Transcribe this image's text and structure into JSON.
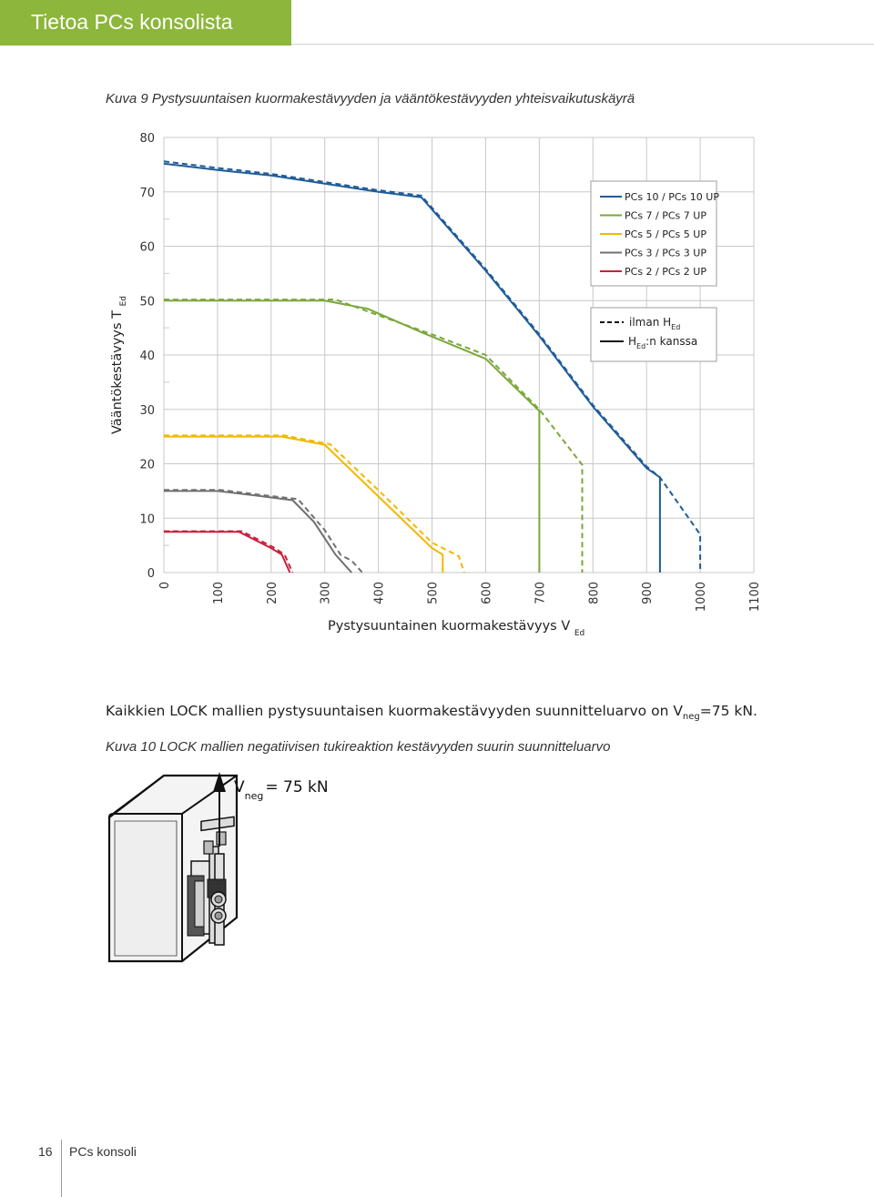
{
  "header": {
    "title": "Tietoa PCs konsolista",
    "accent_color": "#8cb63c"
  },
  "figure9": {
    "caption": "Kuva 9 Pystysuuntaisen kuormakestävyyden ja vääntökestävyyden yhteisvaikutuskäyrä"
  },
  "chart_data": {
    "type": "line",
    "xlabel": "Pystysuuntainen kuormakestävyys V",
    "xlabel_sub": "Ed",
    "ylabel": "Vääntökestävyys T",
    "ylabel_sub": "Ed",
    "xlim": [
      0,
      1100
    ],
    "ylim": [
      0,
      80
    ],
    "x_ticks": [
      "0",
      "100",
      "200",
      "300",
      "400",
      "500",
      "600",
      "700",
      "800",
      "900",
      "1000",
      "1100"
    ],
    "y_ticks": [
      "0",
      "10",
      "20",
      "30",
      "40",
      "50",
      "60",
      "70",
      "80"
    ],
    "grid": true,
    "legend_position": "top-right",
    "legend_linestyle_entries": [
      {
        "label": "ilman H",
        "sub": "Ed",
        "style": "dashed"
      },
      {
        "label": "H",
        "sub": "Ed",
        "suffix": ":n kanssa",
        "style": "solid"
      }
    ],
    "series": [
      {
        "name": "PCs 10 / PCs 10 UP",
        "color": "#1f5c99",
        "solid": [
          [
            0,
            75.2
          ],
          [
            100,
            74
          ],
          [
            200,
            73
          ],
          [
            300,
            71.5
          ],
          [
            400,
            70
          ],
          [
            480,
            69
          ],
          [
            600,
            55.5
          ],
          [
            700,
            43.5
          ],
          [
            800,
            30.5
          ],
          [
            900,
            19.2
          ],
          [
            925,
            17.5
          ],
          [
            925,
            0
          ]
        ],
        "dashed": [
          [
            0,
            75.6
          ],
          [
            100,
            74.4
          ],
          [
            200,
            73.3
          ],
          [
            300,
            71.8
          ],
          [
            400,
            70.3
          ],
          [
            480,
            69.3
          ],
          [
            600,
            55.8
          ],
          [
            700,
            43.8
          ],
          [
            800,
            30.8
          ],
          [
            900,
            19.5
          ],
          [
            925,
            17.5
          ],
          [
            1000,
            7
          ],
          [
            1000,
            0
          ]
        ]
      },
      {
        "name": "PCs 7 / PCs 7 UP",
        "color": "#7aa83a",
        "solid": [
          [
            0,
            50
          ],
          [
            300,
            50
          ],
          [
            380,
            48.5
          ],
          [
            480,
            44.2
          ],
          [
            600,
            39.3
          ],
          [
            700,
            29.7
          ],
          [
            700,
            0
          ]
        ],
        "dashed": [
          [
            0,
            50.2
          ],
          [
            320,
            50.2
          ],
          [
            400,
            47.3
          ],
          [
            500,
            43.8
          ],
          [
            600,
            40
          ],
          [
            700,
            30
          ],
          [
            780,
            19.8
          ],
          [
            780,
            0
          ]
        ]
      },
      {
        "name": "PCs 5 / PCs 5 UP",
        "color": "#f2b800",
        "solid": [
          [
            0,
            25
          ],
          [
            220,
            25
          ],
          [
            300,
            23.5
          ],
          [
            400,
            14
          ],
          [
            500,
            4.5
          ],
          [
            520,
            3.3
          ],
          [
            520,
            0
          ]
        ],
        "dashed": [
          [
            0,
            25.2
          ],
          [
            225,
            25.2
          ],
          [
            310,
            23.6
          ],
          [
            410,
            14.2
          ],
          [
            500,
            5.5
          ],
          [
            550,
            3
          ],
          [
            560,
            0
          ]
        ]
      },
      {
        "name": "PCs 3 / PCs 3 UP",
        "color": "#707070",
        "solid": [
          [
            0,
            15
          ],
          [
            100,
            15
          ],
          [
            170,
            14.2
          ],
          [
            240,
            13.3
          ],
          [
            280,
            9.3
          ],
          [
            320,
            3.3
          ],
          [
            350,
            0
          ]
        ],
        "dashed": [
          [
            0,
            15.2
          ],
          [
            105,
            15.2
          ],
          [
            180,
            14.3
          ],
          [
            250,
            13.5
          ],
          [
            300,
            7.8
          ],
          [
            330,
            3.2
          ],
          [
            350,
            2.2
          ],
          [
            370,
            0
          ]
        ]
      },
      {
        "name": "PCs 2 / PCs 2 UP",
        "color": "#cc1f3d",
        "solid": [
          [
            0,
            7.5
          ],
          [
            140,
            7.5
          ],
          [
            200,
            4.5
          ],
          [
            220,
            3.3
          ],
          [
            235,
            0
          ]
        ],
        "dashed": [
          [
            0,
            7.6
          ],
          [
            145,
            7.6
          ],
          [
            205,
            4.6
          ],
          [
            225,
            3.3
          ],
          [
            240,
            0
          ]
        ]
      }
    ]
  },
  "body": {
    "note_main": "Kaikkien LOCK  mallien pystysuuntaisen kuormakestävyyden suunnitteluarvo on V",
    "note_sub": "neg",
    "note_end": "=75 kN."
  },
  "figure10": {
    "caption": "Kuva 10 LOCK mallien negatiivisen tukireaktion kestävyyden suurin suunnitteluarvo",
    "force_label": "V",
    "force_sub": "neg",
    "force_value": "= 75 kN"
  },
  "footer": {
    "page_number": "16",
    "section": "PCs konsoli",
    "rule_color": "#9c9c9c"
  }
}
